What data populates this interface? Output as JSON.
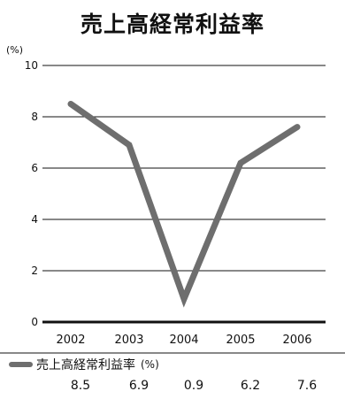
{
  "chart_data": {
    "type": "line",
    "title": "売上高経常利益率",
    "y_unit": "(%)",
    "categories": [
      "2002",
      "2003",
      "2004",
      "2005",
      "2006"
    ],
    "series": [
      {
        "name": "売上高経常利益率",
        "unit": "(%)",
        "values": [
          8.5,
          6.9,
          0.9,
          6.2,
          7.6
        ]
      }
    ],
    "value_labels": [
      "8.5",
      "6.9",
      "0.9",
      "6.2",
      "7.6"
    ],
    "yticks": [
      0,
      2,
      4,
      6,
      8,
      10
    ],
    "ylim": [
      0,
      10
    ],
    "grid": true,
    "line_color": "#6e6e6e"
  }
}
